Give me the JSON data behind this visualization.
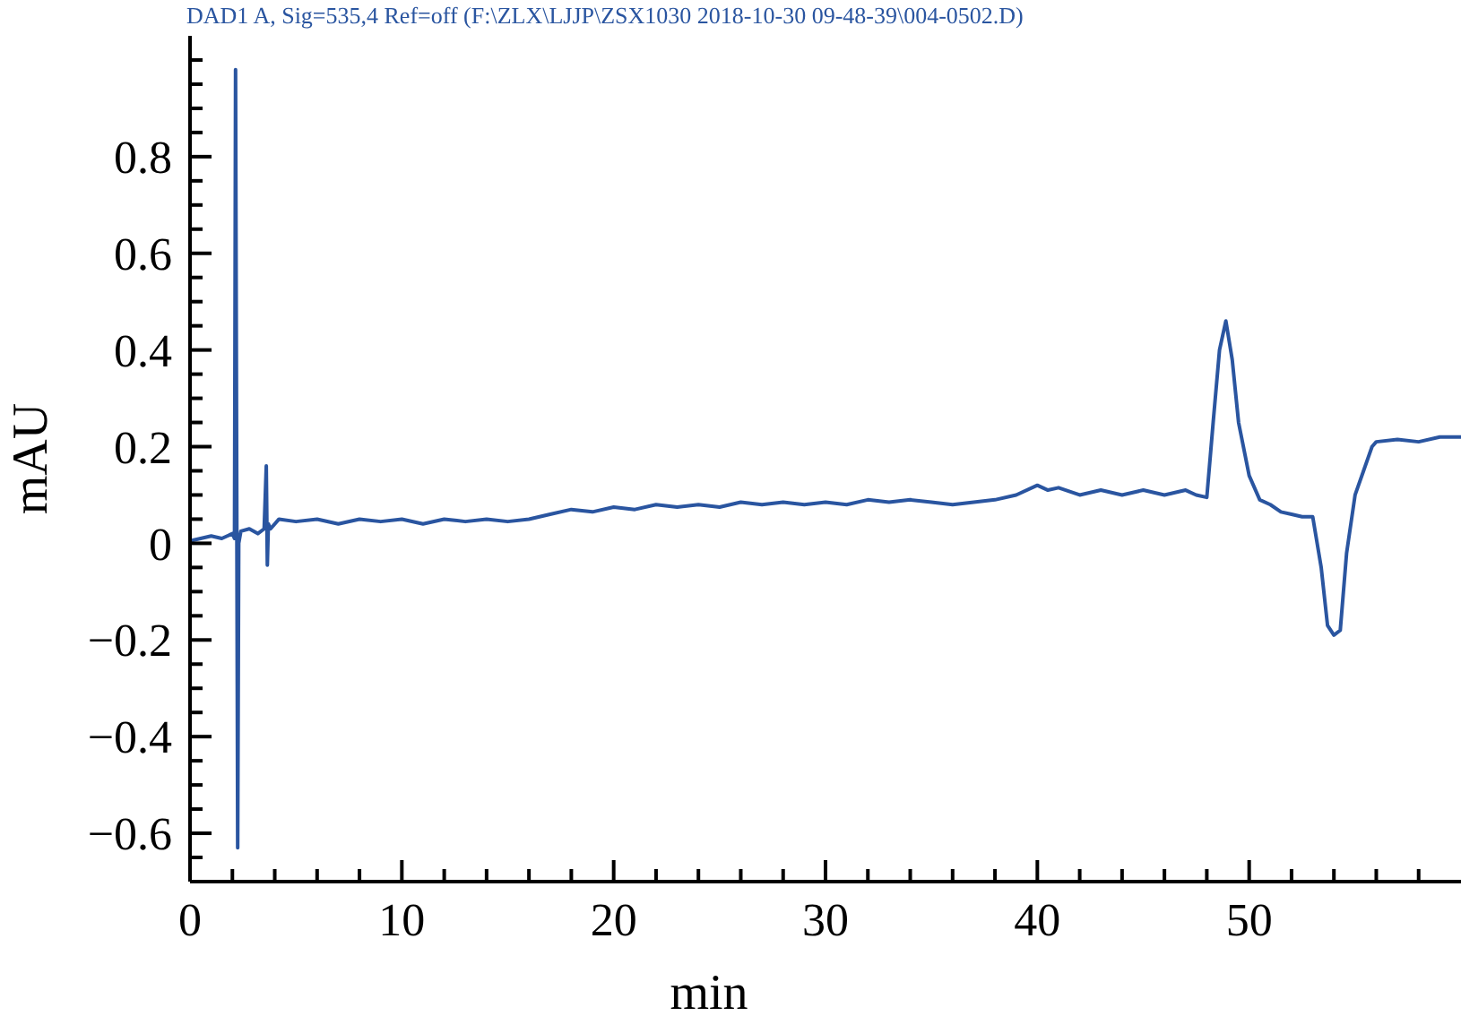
{
  "chart_data": {
    "type": "line",
    "title": "DAD1 A, Sig=535,4 Ref=off (F:\\ZLX\\LJJP\\ZSX1030 2018-10-30 09-48-39\\004-0502.D)",
    "xlabel": "min",
    "ylabel": "mAU",
    "xlim": [
      0,
      60
    ],
    "ylim": [
      -0.7,
      1.05
    ],
    "xticks": [
      0,
      {
        "value": 2,
        "label": null
      },
      {
        "value": 4,
        "label": null
      },
      {
        "value": 6,
        "label": null
      },
      {
        "value": 8,
        "label": null
      },
      10,
      {
        "value": 12,
        "label": null
      },
      {
        "value": 14,
        "label": null
      },
      {
        "value": 16,
        "label": null
      },
      {
        "value": 18,
        "label": null
      },
      20,
      {
        "value": 22,
        "label": null
      },
      {
        "value": 24,
        "label": null
      },
      {
        "value": 26,
        "label": null
      },
      {
        "value": 28,
        "label": null
      },
      30,
      {
        "value": 32,
        "label": null
      },
      {
        "value": 34,
        "label": null
      },
      {
        "value": 36,
        "label": null
      },
      {
        "value": 38,
        "label": null
      },
      40,
      {
        "value": 42,
        "label": null
      },
      {
        "value": 44,
        "label": null
      },
      {
        "value": 46,
        "label": null
      },
      {
        "value": 48,
        "label": null
      },
      50,
      {
        "value": 52,
        "label": null
      },
      {
        "value": 54,
        "label": null
      },
      {
        "value": 56,
        "label": null
      },
      {
        "value": 58,
        "label": null
      }
    ],
    "yticks": [
      {
        "value": -0.7,
        "label": null
      },
      {
        "value": -0.65,
        "label": null
      },
      {
        "value": -0.6,
        "label": "−0.6"
      },
      {
        "value": -0.55,
        "label": null
      },
      {
        "value": -0.5,
        "label": null
      },
      {
        "value": -0.45,
        "label": null
      },
      {
        "value": -0.4,
        "label": "−0.4"
      },
      {
        "value": -0.35,
        "label": null
      },
      {
        "value": -0.3,
        "label": null
      },
      {
        "value": -0.25,
        "label": null
      },
      {
        "value": -0.2,
        "label": "−0.2"
      },
      {
        "value": -0.15,
        "label": null
      },
      {
        "value": -0.1,
        "label": null
      },
      {
        "value": -0.05,
        "label": null
      },
      0,
      {
        "value": 0.05,
        "label": null
      },
      {
        "value": 0.1,
        "label": null
      },
      {
        "value": 0.15,
        "label": null
      },
      0.2,
      {
        "value": 0.25,
        "label": null
      },
      {
        "value": 0.3,
        "label": null
      },
      {
        "value": 0.35,
        "label": null
      },
      0.4,
      {
        "value": 0.45,
        "label": null
      },
      {
        "value": 0.5,
        "label": null
      },
      {
        "value": 0.55,
        "label": null
      },
      0.6,
      {
        "value": 0.65,
        "label": null
      },
      {
        "value": 0.7,
        "label": null
      },
      {
        "value": 0.75,
        "label": null
      },
      0.8,
      {
        "value": 0.85,
        "label": null
      },
      {
        "value": 0.9,
        "label": null
      },
      {
        "value": 0.95,
        "label": null
      },
      {
        "value": 1,
        "label": null
      }
    ],
    "grid": false,
    "marker": "none",
    "line_style": "solid",
    "series": [
      {
        "color": "#2a55a0",
        "x": [
          0,
          0.5,
          1,
          1.5,
          2,
          2.1,
          2.15,
          2.2,
          2.25,
          2.3,
          2.4,
          2.8,
          3.2,
          3.5,
          3.6,
          3.65,
          3.7,
          3.8,
          4.2,
          5,
          6,
          7,
          8,
          9,
          10,
          11,
          12,
          13,
          14,
          15,
          16,
          17,
          18,
          19,
          20,
          21,
          22,
          23,
          24,
          25,
          26,
          27,
          28,
          29,
          30,
          31,
          32,
          33,
          34,
          35,
          36,
          37,
          38,
          39,
          40,
          40.5,
          41,
          42,
          43,
          44,
          45,
          46,
          47,
          47.5,
          48,
          48.3,
          48.6,
          48.9,
          49.2,
          49.5,
          50,
          50.5,
          51,
          51.5,
          52,
          52.5,
          53,
          53.4,
          53.7,
          54,
          54.3,
          54.6,
          55,
          55.4,
          55.8,
          56,
          57,
          58,
          59,
          60
        ],
        "values": [
          0.005,
          0.01,
          0.015,
          0.01,
          0.02,
          0.01,
          0.98,
          0.2,
          -0.63,
          0.0,
          0.025,
          0.03,
          0.02,
          0.03,
          0.16,
          -0.045,
          0.04,
          0.03,
          0.05,
          0.045,
          0.05,
          0.04,
          0.05,
          0.045,
          0.05,
          0.04,
          0.05,
          0.045,
          0.05,
          0.045,
          0.05,
          0.06,
          0.07,
          0.065,
          0.075,
          0.07,
          0.08,
          0.075,
          0.08,
          0.075,
          0.085,
          0.08,
          0.085,
          0.08,
          0.085,
          0.08,
          0.09,
          0.085,
          0.09,
          0.085,
          0.08,
          0.085,
          0.09,
          0.1,
          0.12,
          0.11,
          0.115,
          0.1,
          0.11,
          0.1,
          0.11,
          0.1,
          0.11,
          0.1,
          0.095,
          0.25,
          0.4,
          0.46,
          0.38,
          0.25,
          0.14,
          0.09,
          0.08,
          0.065,
          0.06,
          0.055,
          0.055,
          -0.05,
          -0.17,
          -0.19,
          -0.18,
          -0.02,
          0.1,
          0.15,
          0.2,
          0.21,
          0.215,
          0.21,
          0.22,
          0.22
        ]
      }
    ]
  }
}
